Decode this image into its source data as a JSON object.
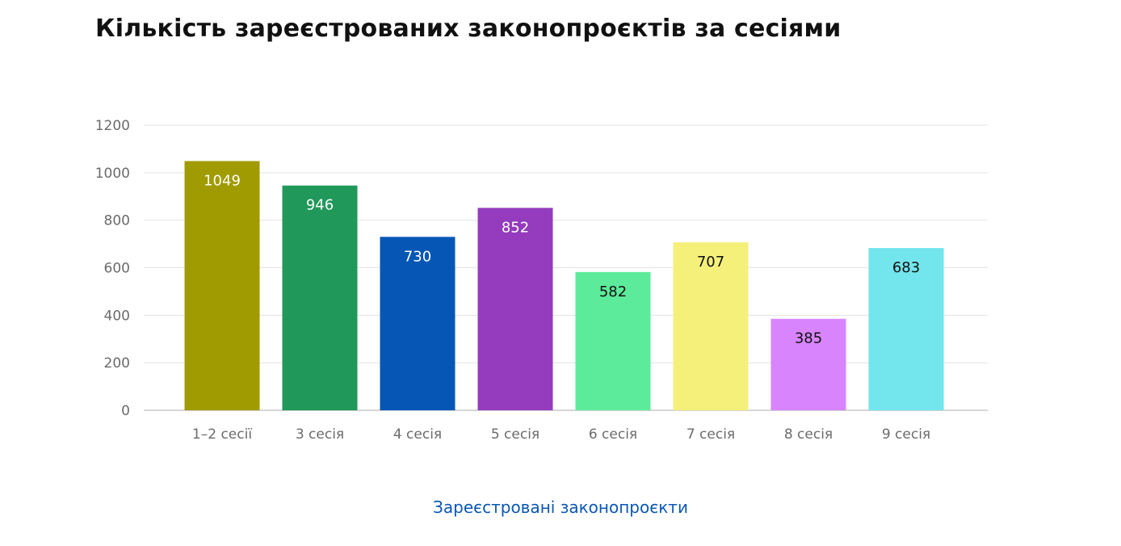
{
  "chart_data": {
    "type": "bar",
    "title": "Кількість зареєстрованих законопроєктів за сесіями",
    "categories": [
      "1–2 сесії",
      "3 сесія",
      "4 сесія",
      "5 сесія",
      "6 сесія",
      "7 сесія",
      "8 сесія",
      "9 сесія"
    ],
    "series": [
      {
        "name": "Зареєстровані законопроєкти",
        "values": [
          1049,
          946,
          730,
          852,
          582,
          707,
          385,
          683
        ]
      }
    ],
    "bar_colors": [
      "#a09b00",
      "#20985a",
      "#0657b5",
      "#943cbd",
      "#5ceb9b",
      "#f5f07a",
      "#d885fd",
      "#73e5ec"
    ],
    "label_colors": [
      "#ffffff",
      "#ffffff",
      "#ffffff",
      "#ffffff",
      "#111111",
      "#111111",
      "#111111",
      "#111111"
    ],
    "ylim": [
      0,
      1200
    ],
    "y_ticks": [
      0,
      200,
      400,
      600,
      800,
      1000,
      1200
    ],
    "grid": true,
    "legend_position": "bottom",
    "legend_color": "#0b57b5"
  }
}
